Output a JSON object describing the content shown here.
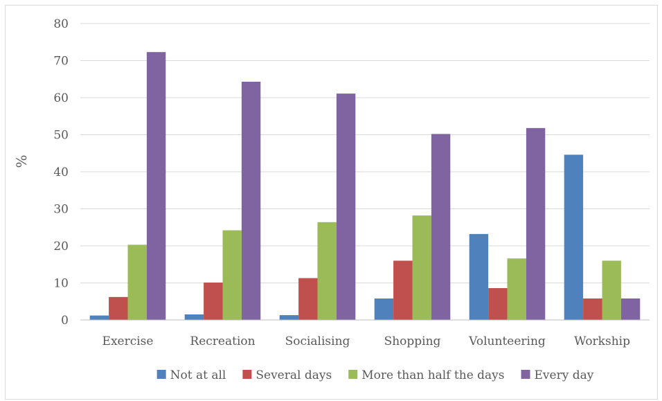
{
  "chart_data": {
    "type": "bar",
    "title": "",
    "xlabel": "",
    "ylabel": "%",
    "ylim": [
      0,
      80
    ],
    "yticks": [
      0,
      10,
      20,
      30,
      40,
      50,
      60,
      70,
      80
    ],
    "grid": true,
    "legend_position": "bottom",
    "categories": [
      "Exercise",
      "Recreation",
      "Socialising",
      "Shopping",
      "Volunteering",
      "Workship"
    ],
    "series": [
      {
        "name": "Not at all",
        "color": "#4f81bd",
        "values": [
          1.2,
          1.5,
          1.3,
          5.8,
          23.2,
          44.6
        ]
      },
      {
        "name": "Several days",
        "color": "#c0504d",
        "values": [
          6.2,
          10.1,
          11.3,
          16.0,
          8.6,
          5.8
        ]
      },
      {
        "name": "More than half the days",
        "color": "#9bbb59",
        "values": [
          20.3,
          24.2,
          26.4,
          28.2,
          16.6,
          16.0
        ]
      },
      {
        "name": "Every day",
        "color": "#8064a2",
        "values": [
          72.3,
          64.3,
          61.1,
          50.2,
          51.8,
          5.8
        ]
      }
    ]
  }
}
